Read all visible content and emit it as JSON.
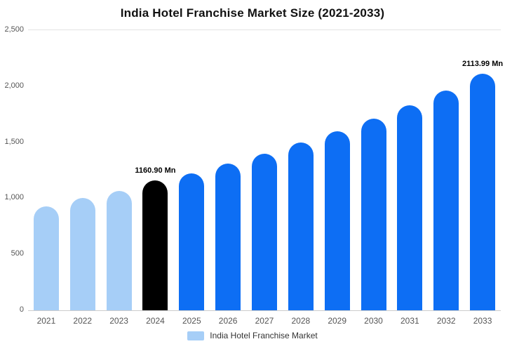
{
  "title": "India Hotel Franchise Market Size (2021-2033)",
  "legend": {
    "label": "India Hotel Franchise Market",
    "swatch_color": "#a6cef7"
  },
  "colors": {
    "light_blue": "#a6cef7",
    "highlight_black": "#000000",
    "brand_blue": "#0d6ef4",
    "axis_line": "#cccccc",
    "tick_text": "#555555"
  },
  "chart_data": {
    "type": "bar",
    "title": "India Hotel Franchise Market Size (2021-2033)",
    "xlabel": "",
    "ylabel": "",
    "categories": [
      "2021",
      "2022",
      "2023",
      "2024",
      "2025",
      "2026",
      "2027",
      "2028",
      "2029",
      "2030",
      "2031",
      "2032",
      "2033"
    ],
    "values": [
      930,
      1000,
      1065,
      1160.9,
      1225,
      1310,
      1400,
      1500,
      1600,
      1710,
      1830,
      1960,
      2113.99
    ],
    "point_labels": [
      "",
      "",
      "",
      "1160.90 Mn",
      "",
      "",
      "",
      "",
      "",
      "",
      "",
      "",
      "2113.99 Mn"
    ],
    "bar_colors": [
      "#a6cef7",
      "#a6cef7",
      "#a6cef7",
      "#000000",
      "#0d6ef4",
      "#0d6ef4",
      "#0d6ef4",
      "#0d6ef4",
      "#0d6ef4",
      "#0d6ef4",
      "#0d6ef4",
      "#0d6ef4",
      "#0d6ef4"
    ],
    "ylim": [
      0,
      2500
    ],
    "yticks": [
      {
        "value": 0,
        "label": "0"
      },
      {
        "value": 500,
        "label": "500"
      },
      {
        "value": 1000,
        "label": "1,000"
      },
      {
        "value": 1500,
        "label": "1,500"
      },
      {
        "value": 2000,
        "label": "2,000"
      },
      {
        "value": 2500,
        "label": "2,500"
      }
    ],
    "grid": "top-line-only",
    "legend_position": "bottom-center",
    "series_name": "India Hotel Franchise Market"
  }
}
